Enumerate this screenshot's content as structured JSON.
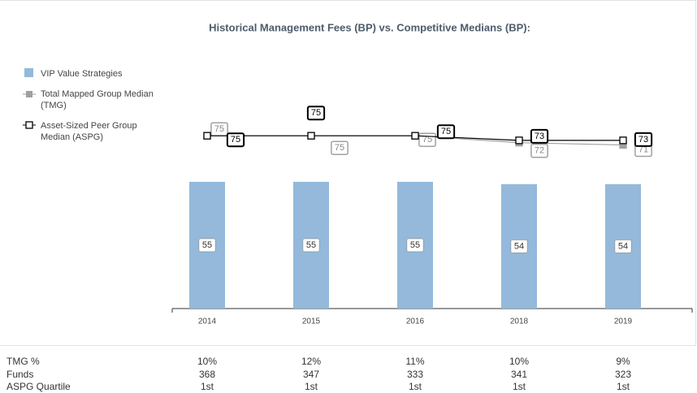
{
  "chart_data": {
    "type": "combo",
    "title": "Historical Management Fees (BP) vs. Competitive Medians (BP):",
    "categories": [
      "2014",
      "2015",
      "2016",
      "2018",
      "2019"
    ],
    "ylim": [
      0,
      80
    ],
    "series": [
      {
        "name": "VIP Value Strategies",
        "type": "bar",
        "color": "#94b9da",
        "values": [
          55,
          55,
          55,
          54,
          54
        ]
      },
      {
        "name": "Total Mapped Group Median (TMG)",
        "type": "line",
        "color": "#a0a0a0",
        "values": [
          75,
          75,
          75,
          72,
          71
        ]
      },
      {
        "name": "Asset-Sized Peer Group Median (ASPG)",
        "type": "line",
        "color": "#000000",
        "values": [
          75,
          75,
          75,
          73,
          73
        ]
      }
    ]
  },
  "table": {
    "rows": [
      [
        "TMG %",
        "10%",
        "12%",
        "11%",
        "10%",
        "9%"
      ],
      [
        "Funds",
        "368",
        "347",
        "333",
        "341",
        "323"
      ],
      [
        "ASPG Quartile",
        "1st",
        "1st",
        "1st",
        "1st",
        "1st"
      ]
    ]
  }
}
